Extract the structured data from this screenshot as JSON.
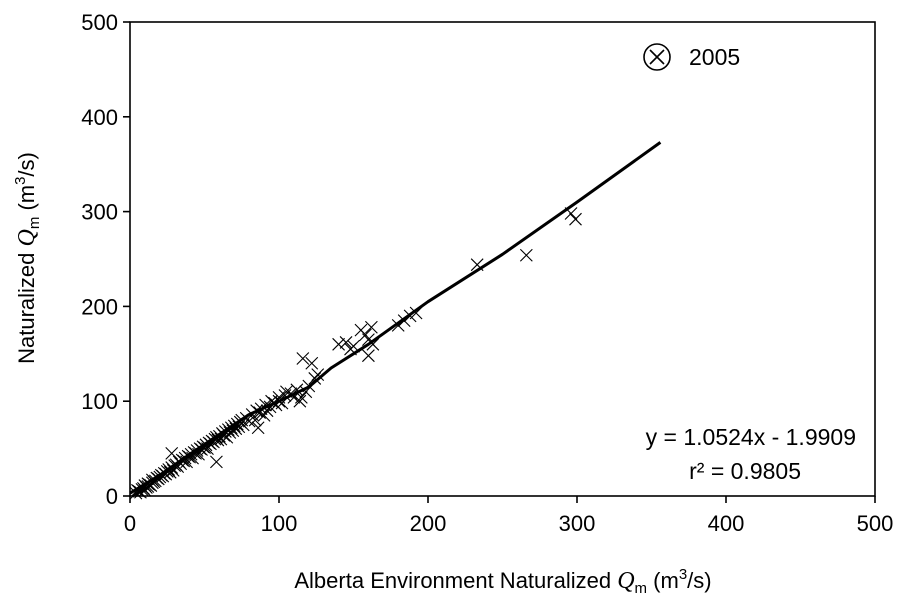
{
  "chart_data": {
    "type": "scatter",
    "xlabel": {
      "pre": "Alberta Environment Naturalized ",
      "var": "Q",
      "sub": "m",
      "unit_pre": " (m",
      "sup": "3",
      "unit_post": "/s)"
    },
    "ylabel": {
      "pre": "Naturalized ",
      "var": "Q",
      "sub": "m",
      "unit_pre": " (m",
      "sup": "3",
      "unit_post": "/s)"
    },
    "xlim": [
      0,
      500
    ],
    "ylim": [
      0,
      500
    ],
    "x_ticks": [
      0,
      100,
      200,
      300,
      400,
      500
    ],
    "y_ticks": [
      0,
      100,
      200,
      300,
      400,
      500
    ],
    "x_tick_labels": [
      "0",
      "100",
      "200",
      "300",
      "400",
      "500"
    ],
    "y_tick_labels": [
      "0",
      "100",
      "200",
      "300",
      "400",
      "500"
    ],
    "grid": false,
    "marker": "x",
    "legend": {
      "label": "2005",
      "marker": "circled-x",
      "position": "top-right"
    },
    "equation_text": "y = 1.0524x - 1.9909",
    "r2_text": "r² = 0.9805",
    "fit_line": {
      "x": [
        0,
        20,
        40,
        60,
        80,
        100,
        120,
        135,
        160,
        200,
        250,
        300,
        356
      ],
      "y": [
        3,
        22,
        44,
        65,
        86,
        100,
        115,
        135,
        160,
        205,
        255,
        310,
        373
      ]
    },
    "points": [
      [
        4,
        3
      ],
      [
        5,
        6
      ],
      [
        6,
        5
      ],
      [
        7,
        4
      ],
      [
        8,
        7
      ],
      [
        9,
        8
      ],
      [
        10,
        6
      ],
      [
        10,
        11
      ],
      [
        11,
        9
      ],
      [
        12,
        10
      ],
      [
        12,
        13
      ],
      [
        13,
        12
      ],
      [
        14,
        11
      ],
      [
        15,
        14
      ],
      [
        15,
        17
      ],
      [
        16,
        15
      ],
      [
        17,
        16
      ],
      [
        18,
        19
      ],
      [
        19,
        18
      ],
      [
        20,
        20
      ],
      [
        21,
        22
      ],
      [
        22,
        21
      ],
      [
        23,
        24
      ],
      [
        24,
        23
      ],
      [
        25,
        26
      ],
      [
        26,
        28
      ],
      [
        27,
        25
      ],
      [
        28,
        30
      ],
      [
        29,
        27
      ],
      [
        30,
        32
      ],
      [
        28,
        45
      ],
      [
        31,
        33
      ],
      [
        32,
        31
      ],
      [
        33,
        36
      ],
      [
        34,
        34
      ],
      [
        35,
        38
      ],
      [
        36,
        37
      ],
      [
        37,
        40
      ],
      [
        38,
        36
      ],
      [
        39,
        42
      ],
      [
        40,
        41
      ],
      [
        41,
        44
      ],
      [
        42,
        40
      ],
      [
        43,
        46
      ],
      [
        44,
        45
      ],
      [
        45,
        48
      ],
      [
        46,
        44
      ],
      [
        47,
        50
      ],
      [
        48,
        49
      ],
      [
        49,
        52
      ],
      [
        50,
        51
      ],
      [
        51,
        54
      ],
      [
        52,
        50
      ],
      [
        53,
        56
      ],
      [
        54,
        55
      ],
      [
        55,
        58
      ],
      [
        56,
        57
      ],
      [
        57,
        60
      ],
      [
        58,
        36
      ],
      [
        58,
        62
      ],
      [
        59,
        59
      ],
      [
        60,
        63
      ],
      [
        61,
        60
      ],
      [
        62,
        66
      ],
      [
        63,
        64
      ],
      [
        64,
        68
      ],
      [
        65,
        62
      ],
      [
        66,
        70
      ],
      [
        67,
        67
      ],
      [
        68,
        72
      ],
      [
        69,
        69
      ],
      [
        70,
        74
      ],
      [
        71,
        71
      ],
      [
        72,
        76
      ],
      [
        73,
        73
      ],
      [
        74,
        78
      ],
      [
        75,
        80
      ],
      [
        76,
        75
      ],
      [
        78,
        82
      ],
      [
        80,
        79
      ],
      [
        82,
        86
      ],
      [
        84,
        80
      ],
      [
        85,
        90
      ],
      [
        86,
        72
      ],
      [
        87,
        88
      ],
      [
        88,
        92
      ],
      [
        90,
        85
      ],
      [
        91,
        96
      ],
      [
        92,
        90
      ],
      [
        94,
        94
      ],
      [
        95,
        100
      ],
      [
        97,
        98
      ],
      [
        98,
        96
      ],
      [
        100,
        100
      ],
      [
        100,
        104
      ],
      [
        102,
        98
      ],
      [
        104,
        106
      ],
      [
        105,
        110
      ],
      [
        108,
        108
      ],
      [
        110,
        104
      ],
      [
        112,
        112
      ],
      [
        114,
        100
      ],
      [
        115,
        104
      ],
      [
        116,
        145
      ],
      [
        118,
        110
      ],
      [
        120,
        116
      ],
      [
        122,
        140
      ],
      [
        124,
        124
      ],
      [
        126,
        128
      ],
      [
        140,
        160
      ],
      [
        145,
        162
      ],
      [
        148,
        155
      ],
      [
        150,
        158
      ],
      [
        155,
        175
      ],
      [
        158,
        170
      ],
      [
        160,
        148
      ],
      [
        160,
        165
      ],
      [
        162,
        178
      ],
      [
        163,
        160
      ],
      [
        180,
        180
      ],
      [
        184,
        185
      ],
      [
        188,
        190
      ],
      [
        192,
        193
      ],
      [
        233,
        244
      ],
      [
        266,
        254
      ],
      [
        296,
        298
      ],
      [
        299,
        292
      ]
    ]
  }
}
